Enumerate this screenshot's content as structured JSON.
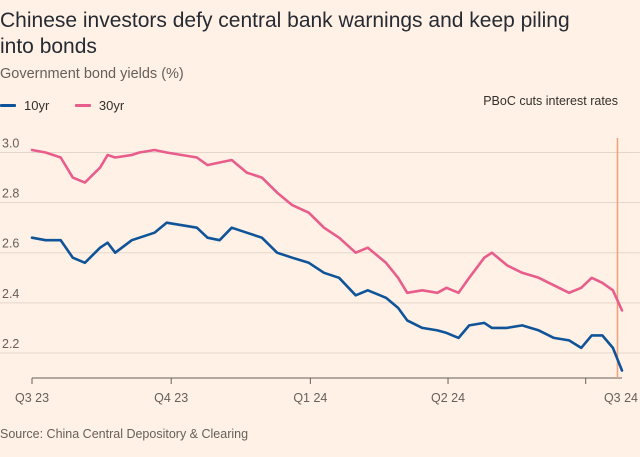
{
  "title": "Chinese investors defy central bank warnings and keep piling into bonds",
  "subtitle": "Government bond yields (%)",
  "annotation": "PBoC cuts interest rates",
  "source": "Source: China Central Depository & Clearing",
  "colors": {
    "10yr": "#0f5499",
    "30yr": "#e95d8c",
    "marker": "#f2a07b",
    "grid": "#e3d7cc",
    "background": "#fff1e5"
  },
  "chart_data": {
    "type": "line",
    "title": "Chinese investors defy central bank warnings and keep piling into bonds",
    "ylabel": "Government bond yields (%)",
    "xlabel": "",
    "x_ticks": [
      "Q3 23",
      "Q4 23",
      "Q1 24",
      "Q2 24",
      "Q3 24"
    ],
    "y_ticks": [
      "2.2",
      "2.4",
      "2.6",
      "2.8",
      "3.0"
    ],
    "xlim": [
      "2023-07-01",
      "2024-07-25"
    ],
    "ylim": [
      2.1,
      3.05
    ],
    "grid": true,
    "legend_position": "top-left",
    "marker_date": "2024-07-22",
    "series": [
      {
        "name": "10yr",
        "x": [
          "2023-07-01",
          "2023-07-10",
          "2023-07-20",
          "2023-07-28",
          "2023-08-05",
          "2023-08-15",
          "2023-08-20",
          "2023-08-25",
          "2023-09-05",
          "2023-09-10",
          "2023-09-20",
          "2023-09-28",
          "2023-10-08",
          "2023-10-18",
          "2023-10-25",
          "2023-11-02",
          "2023-11-10",
          "2023-11-20",
          "2023-11-30",
          "2023-12-10",
          "2023-12-20",
          "2023-12-31",
          "2024-01-10",
          "2024-01-20",
          "2024-01-31",
          "2024-02-08",
          "2024-02-20",
          "2024-02-28",
          "2024-03-05",
          "2024-03-15",
          "2024-03-25",
          "2024-03-31",
          "2024-04-08",
          "2024-04-15",
          "2024-04-25",
          "2024-04-30",
          "2024-05-10",
          "2024-05-20",
          "2024-05-31",
          "2024-06-10",
          "2024-06-20",
          "2024-06-28",
          "2024-07-05",
          "2024-07-12",
          "2024-07-19",
          "2024-07-25"
        ],
        "values": [
          2.66,
          2.65,
          2.65,
          2.58,
          2.56,
          2.62,
          2.64,
          2.6,
          2.65,
          2.66,
          2.68,
          2.72,
          2.71,
          2.7,
          2.66,
          2.65,
          2.7,
          2.68,
          2.66,
          2.6,
          2.58,
          2.56,
          2.52,
          2.5,
          2.43,
          2.45,
          2.42,
          2.38,
          2.33,
          2.3,
          2.29,
          2.28,
          2.26,
          2.31,
          2.32,
          2.3,
          2.3,
          2.31,
          2.29,
          2.26,
          2.25,
          2.22,
          2.27,
          2.27,
          2.22,
          2.13
        ]
      },
      {
        "name": "30yr",
        "x": [
          "2023-07-01",
          "2023-07-10",
          "2023-07-20",
          "2023-07-28",
          "2023-08-05",
          "2023-08-15",
          "2023-08-20",
          "2023-08-25",
          "2023-09-05",
          "2023-09-10",
          "2023-09-20",
          "2023-09-28",
          "2023-10-08",
          "2023-10-18",
          "2023-10-25",
          "2023-11-02",
          "2023-11-10",
          "2023-11-20",
          "2023-11-30",
          "2023-12-10",
          "2023-12-20",
          "2023-12-31",
          "2024-01-10",
          "2024-01-20",
          "2024-01-31",
          "2024-02-08",
          "2024-02-20",
          "2024-02-28",
          "2024-03-05",
          "2024-03-15",
          "2024-03-25",
          "2024-03-31",
          "2024-04-08",
          "2024-04-15",
          "2024-04-25",
          "2024-04-30",
          "2024-05-10",
          "2024-05-20",
          "2024-05-31",
          "2024-06-10",
          "2024-06-20",
          "2024-06-28",
          "2024-07-05",
          "2024-07-12",
          "2024-07-19",
          "2024-07-25"
        ],
        "values": [
          3.01,
          3.0,
          2.98,
          2.9,
          2.88,
          2.94,
          2.99,
          2.98,
          2.99,
          3.0,
          3.01,
          3.0,
          2.99,
          2.98,
          2.95,
          2.96,
          2.97,
          2.92,
          2.9,
          2.84,
          2.79,
          2.76,
          2.7,
          2.66,
          2.6,
          2.62,
          2.56,
          2.5,
          2.44,
          2.45,
          2.44,
          2.46,
          2.44,
          2.5,
          2.58,
          2.6,
          2.55,
          2.52,
          2.5,
          2.47,
          2.44,
          2.46,
          2.5,
          2.48,
          2.45,
          2.37
        ]
      }
    ]
  }
}
